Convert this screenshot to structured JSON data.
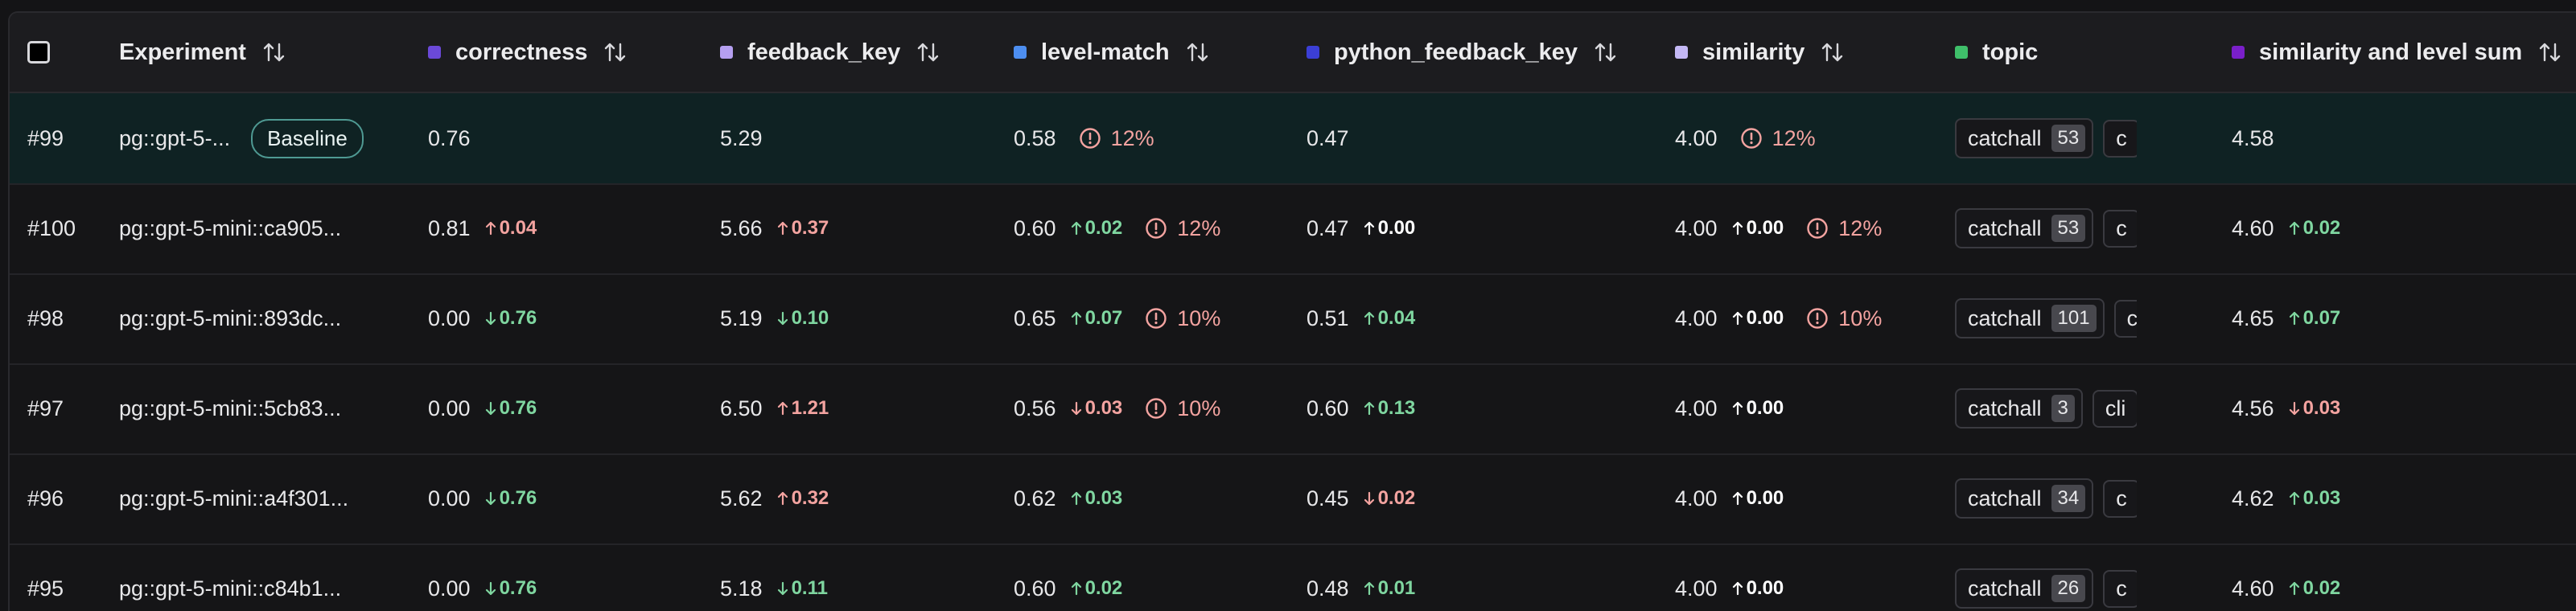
{
  "header": {
    "columns": [
      {
        "label": "Experiment"
      },
      {
        "label": "correctness",
        "color": "#6b49d8"
      },
      {
        "label": "feedback_key",
        "color": "#b59ff0"
      },
      {
        "label": "level-match",
        "color": "#4d8ef0"
      },
      {
        "label": "python_feedback_key",
        "color": "#3b3fd6"
      },
      {
        "label": "similarity",
        "color": "#c4b8f5"
      },
      {
        "label": "topic",
        "color": "#3fbf6a"
      },
      {
        "label": "similarity and level sum",
        "color": "#7a1fc9"
      }
    ]
  },
  "rows": [
    {
      "id": "#99",
      "experiment": "pg::gpt-5-...",
      "badge": "Baseline",
      "correctness": {
        "value": "0.76"
      },
      "feedback_key": {
        "value": "5.29"
      },
      "level_match": {
        "value": "0.58",
        "warn": "12%"
      },
      "python_feedback_key": {
        "value": "0.47"
      },
      "similarity": {
        "value": "4.00",
        "warn": "12%"
      },
      "topic": {
        "chip": "catchall",
        "count": "53",
        "next": "c"
      },
      "sum": {
        "value": "4.58"
      }
    },
    {
      "id": "#100",
      "experiment": "pg::gpt-5-mini::ca905...",
      "correctness": {
        "value": "0.81",
        "delta": "0.04",
        "dir": "up",
        "tone": "red"
      },
      "feedback_key": {
        "value": "5.66",
        "delta": "0.37",
        "dir": "up",
        "tone": "red"
      },
      "level_match": {
        "value": "0.60",
        "delta": "0.02",
        "dir": "up",
        "tone": "green",
        "warn": "12%"
      },
      "python_feedback_key": {
        "value": "0.47",
        "delta": "0.00",
        "dir": "up",
        "tone": "neutral"
      },
      "similarity": {
        "value": "4.00",
        "delta": "0.00",
        "dir": "up",
        "tone": "neutral",
        "warn": "12%"
      },
      "topic": {
        "chip": "catchall",
        "count": "53",
        "next": "c"
      },
      "sum": {
        "value": "4.60",
        "delta": "0.02",
        "dir": "up",
        "tone": "green"
      }
    },
    {
      "id": "#98",
      "experiment": "pg::gpt-5-mini::893dc...",
      "correctness": {
        "value": "0.00",
        "delta": "0.76",
        "dir": "down",
        "tone": "green"
      },
      "feedback_key": {
        "value": "5.19",
        "delta": "0.10",
        "dir": "down",
        "tone": "green"
      },
      "level_match": {
        "value": "0.65",
        "delta": "0.07",
        "dir": "up",
        "tone": "green",
        "warn": "10%"
      },
      "python_feedback_key": {
        "value": "0.51",
        "delta": "0.04",
        "dir": "up",
        "tone": "green"
      },
      "similarity": {
        "value": "4.00",
        "delta": "0.00",
        "dir": "up",
        "tone": "neutral",
        "warn": "10%"
      },
      "topic": {
        "chip": "catchall",
        "count": "101",
        "next": "c"
      },
      "sum": {
        "value": "4.65",
        "delta": "0.07",
        "dir": "up",
        "tone": "green"
      }
    },
    {
      "id": "#97",
      "experiment": "pg::gpt-5-mini::5cb83...",
      "correctness": {
        "value": "0.00",
        "delta": "0.76",
        "dir": "down",
        "tone": "green"
      },
      "feedback_key": {
        "value": "6.50",
        "delta": "1.21",
        "dir": "up",
        "tone": "red"
      },
      "level_match": {
        "value": "0.56",
        "delta": "0.03",
        "dir": "down",
        "tone": "red",
        "warn": "10%"
      },
      "python_feedback_key": {
        "value": "0.60",
        "delta": "0.13",
        "dir": "up",
        "tone": "green"
      },
      "similarity": {
        "value": "4.00",
        "delta": "0.00",
        "dir": "up",
        "tone": "neutral"
      },
      "topic": {
        "chip": "catchall",
        "count": "3",
        "next": "cli"
      },
      "sum": {
        "value": "4.56",
        "delta": "0.03",
        "dir": "down",
        "tone": "red"
      }
    },
    {
      "id": "#96",
      "experiment": "pg::gpt-5-mini::a4f301...",
      "correctness": {
        "value": "0.00",
        "delta": "0.76",
        "dir": "down",
        "tone": "green"
      },
      "feedback_key": {
        "value": "5.62",
        "delta": "0.32",
        "dir": "up",
        "tone": "red"
      },
      "level_match": {
        "value": "0.62",
        "delta": "0.03",
        "dir": "up",
        "tone": "green"
      },
      "python_feedback_key": {
        "value": "0.45",
        "delta": "0.02",
        "dir": "down",
        "tone": "red"
      },
      "similarity": {
        "value": "4.00",
        "delta": "0.00",
        "dir": "up",
        "tone": "neutral"
      },
      "topic": {
        "chip": "catchall",
        "count": "34",
        "next": "c"
      },
      "sum": {
        "value": "4.62",
        "delta": "0.03",
        "dir": "up",
        "tone": "green"
      }
    },
    {
      "id": "#95",
      "experiment": "pg::gpt-5-mini::c84b1...",
      "correctness": {
        "value": "0.00",
        "delta": "0.76",
        "dir": "down",
        "tone": "green"
      },
      "feedback_key": {
        "value": "5.18",
        "delta": "0.11",
        "dir": "down",
        "tone": "green"
      },
      "level_match": {
        "value": "0.60",
        "delta": "0.02",
        "dir": "up",
        "tone": "green"
      },
      "python_feedback_key": {
        "value": "0.48",
        "delta": "0.01",
        "dir": "up",
        "tone": "green"
      },
      "similarity": {
        "value": "4.00",
        "delta": "0.00",
        "dir": "up",
        "tone": "neutral"
      },
      "topic": {
        "chip": "catchall",
        "count": "26",
        "next": "c"
      },
      "sum": {
        "value": "4.60",
        "delta": "0.02",
        "dir": "up",
        "tone": "green"
      }
    }
  ]
}
